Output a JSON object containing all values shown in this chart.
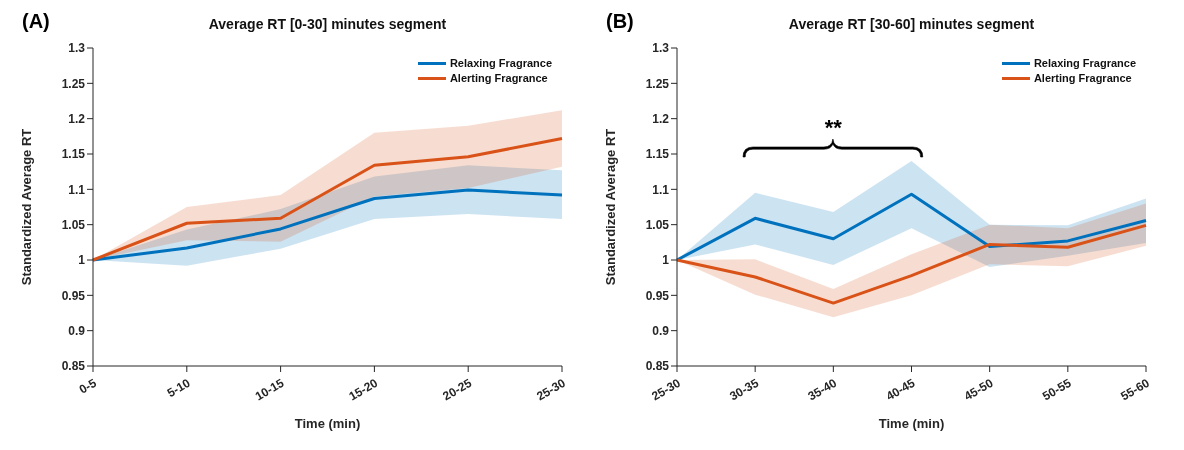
{
  "chart_data": [
    {
      "type": "line",
      "title": "Average RT [0-30] minutes segment",
      "xlabel": "Time (min)",
      "ylabel": "Standardized Average RT",
      "categories": [
        "0-5",
        "5-10",
        "10-15",
        "15-20",
        "20-25",
        "25-30"
      ],
      "ylim": [
        0.85,
        1.3
      ],
      "yticks": [
        0.85,
        0.9,
        0.95,
        1,
        1.05,
        1.1,
        1.15,
        1.2,
        1.25,
        1.3
      ],
      "grid": false,
      "legend": "top right",
      "annotations": [
        "(A)"
      ],
      "series": [
        {
          "name": "Relaxing Fragrance",
          "color": "#0072bd",
          "values": [
            1,
            1.017,
            1.044,
            1.087,
            1.099,
            1.092
          ],
          "lower": [
            1,
            0.992,
            1.016,
            1.058,
            1.065,
            1.058
          ],
          "upper": [
            1,
            1.043,
            1.072,
            1.118,
            1.134,
            1.127
          ]
        },
        {
          "name": "Alerting Fragrance",
          "color": "#d95319",
          "values": [
            1,
            1.052,
            1.059,
            1.134,
            1.146,
            1.172
          ],
          "lower": [
            1,
            1.028,
            1.026,
            1.09,
            1.102,
            1.132
          ],
          "upper": [
            1,
            1.075,
            1.092,
            1.18,
            1.19,
            1.212
          ]
        }
      ]
    },
    {
      "type": "line",
      "title": "Average RT [30-60] minutes segment",
      "xlabel": "Time (min)",
      "ylabel": "Standardized Average RT",
      "categories": [
        "25-30",
        "30-35",
        "35-40",
        "40-45",
        "45-50",
        "50-55",
        "55-60"
      ],
      "ylim": [
        0.85,
        1.3
      ],
      "yticks": [
        0.85,
        0.9,
        0.95,
        1,
        1.05,
        1.1,
        1.15,
        1.2,
        1.25,
        1.3
      ],
      "grid": false,
      "legend": "top right",
      "annotations": [
        "(B)",
        "**"
      ],
      "series": [
        {
          "name": "Relaxing Fragrance",
          "color": "#0072bd",
          "values": [
            1,
            1.059,
            1.03,
            1.093,
            1.019,
            1.027,
            1.056
          ],
          "lower": [
            1,
            1.022,
            0.993,
            1.045,
            0.99,
            1.006,
            1.024
          ],
          "upper": [
            1,
            1.095,
            1.068,
            1.14,
            1.05,
            1.049,
            1.087
          ]
        },
        {
          "name": "Alerting Fragrance",
          "color": "#d95319",
          "values": [
            1,
            0.976,
            0.939,
            0.978,
            1.022,
            1.018,
            1.049
          ],
          "lower": [
            1,
            0.951,
            0.919,
            0.95,
            0.994,
            0.991,
            1.02
          ],
          "upper": [
            1,
            1.001,
            0.959,
            1.008,
            1.05,
            1.045,
            1.08
          ]
        }
      ]
    }
  ]
}
